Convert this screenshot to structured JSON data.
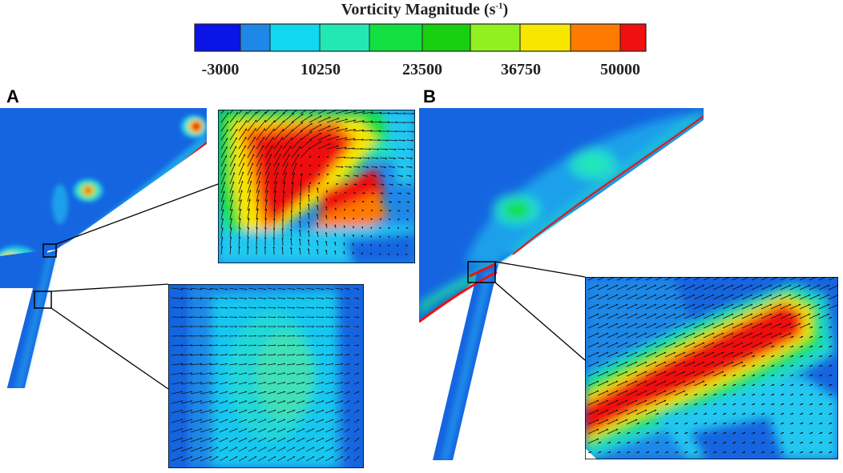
{
  "colorbar": {
    "title": "Vorticity Magnitude (s",
    "title_sup": "-1",
    "title_close": ")",
    "ticks": [
      "-3000",
      "10250",
      "23500",
      "36750",
      "50000"
    ],
    "colors": [
      "#0a14e6",
      "#1e88e8",
      "#12d7f0",
      "#22e8b4",
      "#12e040",
      "#18d010",
      "#90f020",
      "#f7e600",
      "#ff7a00",
      "#f01010"
    ]
  },
  "panels": {
    "a_label": "A",
    "b_label": "B"
  }
}
